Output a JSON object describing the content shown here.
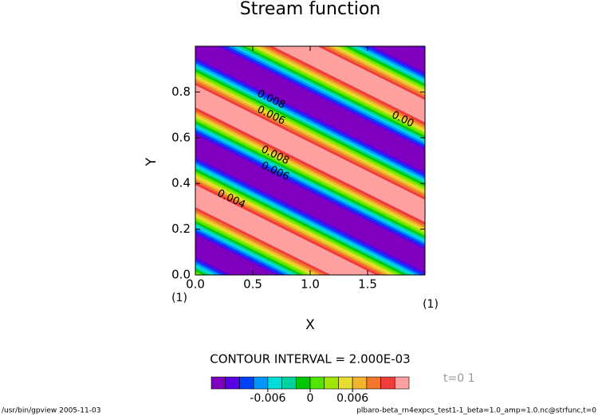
{
  "chart_data": {
    "type": "contour",
    "title": "Stream function",
    "x_label": "X",
    "y_label": "Y",
    "xlim": [
      0,
      2
    ],
    "ylim": [
      0,
      1
    ],
    "xticks": [
      {
        "value": 0,
        "label": "0.0"
      },
      {
        "value": 0.5,
        "label": "0.5"
      },
      {
        "value": 1,
        "label": "1.0"
      },
      {
        "value": 1.5,
        "label": "1.5"
      }
    ],
    "yticks": [
      {
        "value": 0,
        "label": "0.0"
      },
      {
        "value": 0.2,
        "label": "0.2"
      },
      {
        "value": 0.4,
        "label": "0.4"
      },
      {
        "value": 0.6,
        "label": "0.6"
      },
      {
        "value": 0.8,
        "label": "0.8"
      }
    ],
    "x_unit_label": "(1)",
    "y_unit_label": "(1)",
    "contour_interval": "CONTOUR INTERVAL = 2.000E-03",
    "levels": [
      -0.012,
      -0.01,
      -0.008,
      -0.006,
      -0.004,
      -0.002,
      0,
      0.002,
      0.004,
      0.006,
      0.008,
      0.01,
      0.012
    ],
    "colors": [
      "#7f00bf",
      "#5a00e6",
      "#0040ff",
      "#0096ff",
      "#00dcdc",
      "#00d2a0",
      "#00c800",
      "#50e600",
      "#a0e600",
      "#e6dc32",
      "#f0b42d",
      "#f07828",
      "#f03c3c",
      "#ffa0a0"
    ],
    "colorbar_ticks": [
      -0.006,
      0,
      0.006
    ],
    "contour_labels": [
      "0.008",
      "0.006",
      "0.004",
      "0.008",
      "0.006",
      "0.00"
    ],
    "time_label": "t=0 1",
    "footer_left": "/usr/bin/gpview  2005-11-03",
    "footer_right": "plbaro-beta_rn4expcs_test1-1_beta=1.0_amp=1.0.nc@strfunc,t=0"
  }
}
